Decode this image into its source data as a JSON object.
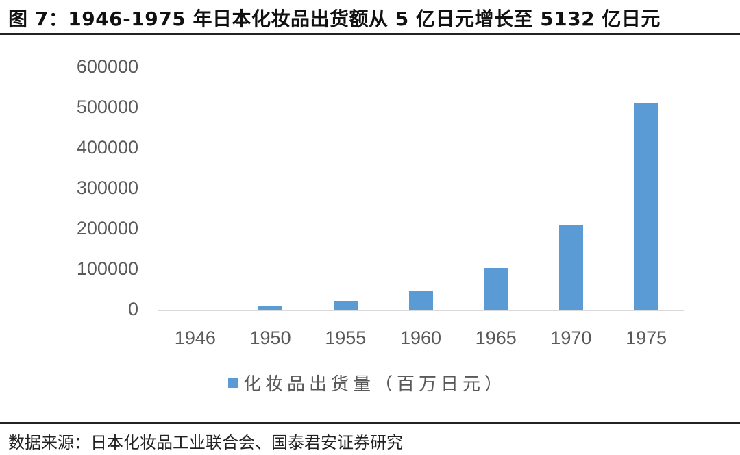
{
  "header": {
    "title": "图 7：1946-1975 年日本化妆品出货额从 5 亿日元增长至 5132 亿日元"
  },
  "footer": {
    "source": "数据来源：日本化妆品工业联合会、国泰君安证券研究"
  },
  "colors": {
    "bar": "#5b9bd5",
    "axis": "#d9d9d9",
    "tick_text": "#595959"
  },
  "chart_data": {
    "type": "bar",
    "title": "1946-1975 年日本化妆品出货额从 5 亿日元增长至 5132 亿日元",
    "xlabel": "",
    "ylabel": "",
    "categories": [
      "1946",
      "1950",
      "1955",
      "1960",
      "1965",
      "1970",
      "1975"
    ],
    "series": [
      {
        "name": "化妆品出货量（百万日元）",
        "values": [
          500,
          10000,
          23500,
          47500,
          105000,
          212000,
          513200
        ]
      }
    ],
    "ylim": [
      0,
      600000
    ],
    "yticks": [
      "0",
      "100000",
      "200000",
      "300000",
      "400000",
      "500000",
      "600000"
    ],
    "grid": false,
    "legend_position": "bottom"
  },
  "legend": {
    "label": "化妆品出货量（百万日元）"
  }
}
